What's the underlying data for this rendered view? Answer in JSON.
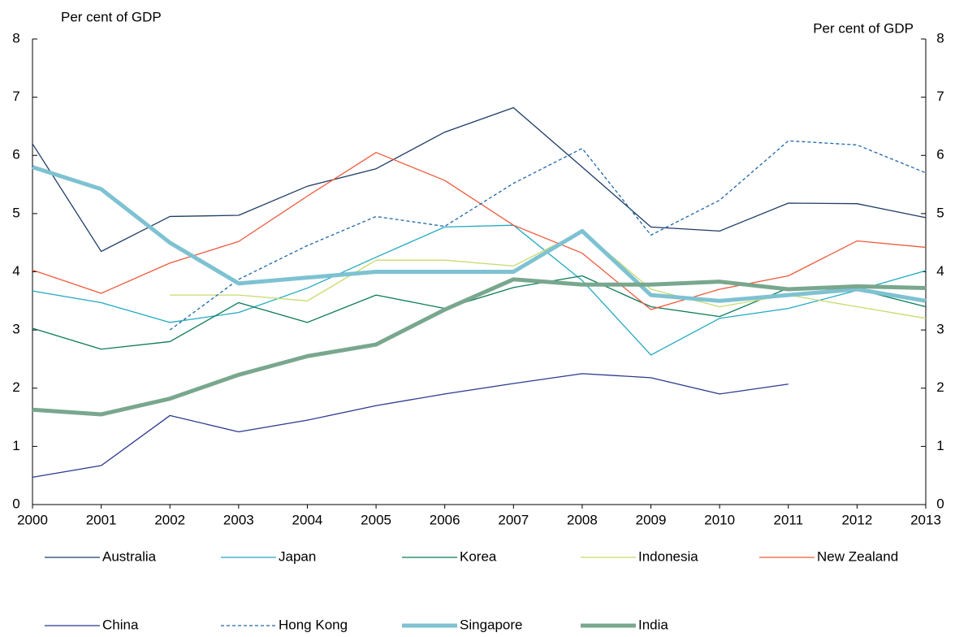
{
  "chart_data": {
    "type": "line",
    "y_label": "Per cent of GDP",
    "y2_label": "Per cent of GDP",
    "categories": [
      "2000",
      "2001",
      "2002",
      "2003",
      "2004",
      "2005",
      "2006",
      "2007",
      "2008",
      "2009",
      "2010",
      "2011",
      "2012",
      "2013"
    ],
    "ylim": [
      0,
      8
    ],
    "yticks": [
      0,
      1,
      2,
      3,
      4,
      5,
      6,
      7,
      8
    ],
    "y2lim": [
      0,
      8
    ],
    "y2ticks": [
      0,
      1,
      2,
      3,
      4,
      5,
      6,
      7,
      8
    ],
    "legend": "bottom",
    "series": [
      {
        "name": "Australia",
        "color": "#1f3c66",
        "values": [
          6.2,
          4.35,
          4.95,
          4.97,
          5.47,
          5.77,
          6.4,
          6.82,
          5.8,
          4.77,
          4.7,
          5.18,
          5.17,
          4.93
        ]
      },
      {
        "name": "Japan",
        "color": "#22a9c1",
        "values": [
          3.67,
          3.47,
          3.13,
          3.3,
          3.72,
          4.25,
          4.77,
          4.8,
          3.85,
          2.57,
          3.2,
          3.37,
          3.68,
          4.02
        ]
      },
      {
        "name": "Korea",
        "color": "#0b7a58",
        "values": [
          3.03,
          2.67,
          2.8,
          3.47,
          3.13,
          3.6,
          3.37,
          3.73,
          3.93,
          3.4,
          3.23,
          3.72,
          3.7,
          3.4
        ]
      },
      {
        "name": "Indonesia",
        "color": "#c9da6e",
        "values": [
          null,
          null,
          3.6,
          3.6,
          3.5,
          4.2,
          4.2,
          4.1,
          4.7,
          3.7,
          3.4,
          3.6,
          3.4,
          3.2
        ]
      },
      {
        "name": "New Zealand",
        "color": "#ee5a3b",
        "values": [
          4.03,
          3.63,
          4.15,
          4.52,
          5.3,
          6.05,
          5.57,
          4.8,
          4.32,
          3.35,
          3.7,
          3.93,
          4.53,
          4.42
        ]
      },
      {
        "name": "China",
        "color": "#2b3990",
        "values": [
          0.47,
          0.67,
          1.53,
          1.25,
          1.45,
          1.7,
          1.9,
          2.08,
          2.25,
          2.18,
          1.9,
          2.07,
          null,
          null
        ]
      },
      {
        "name": "Hong Kong",
        "color": "#1d66a8",
        "linestyle": "dashed",
        "values": [
          null,
          null,
          3.0,
          3.87,
          4.45,
          4.95,
          4.78,
          5.52,
          6.12,
          4.63,
          5.23,
          6.25,
          6.18,
          5.7
        ]
      },
      {
        "name": "Singapore",
        "color": "#7ec2d2",
        "linewidth": 5,
        "values": [
          5.8,
          5.42,
          4.5,
          3.8,
          3.9,
          4.0,
          4.0,
          4.0,
          4.7,
          3.6,
          3.5,
          3.6,
          3.7,
          3.5
        ]
      },
      {
        "name": "India",
        "color": "#79a78e",
        "linewidth": 5,
        "values": [
          1.63,
          1.55,
          1.82,
          2.23,
          2.55,
          2.75,
          3.35,
          3.87,
          3.78,
          3.78,
          3.83,
          3.7,
          3.75,
          3.72
        ]
      }
    ]
  }
}
